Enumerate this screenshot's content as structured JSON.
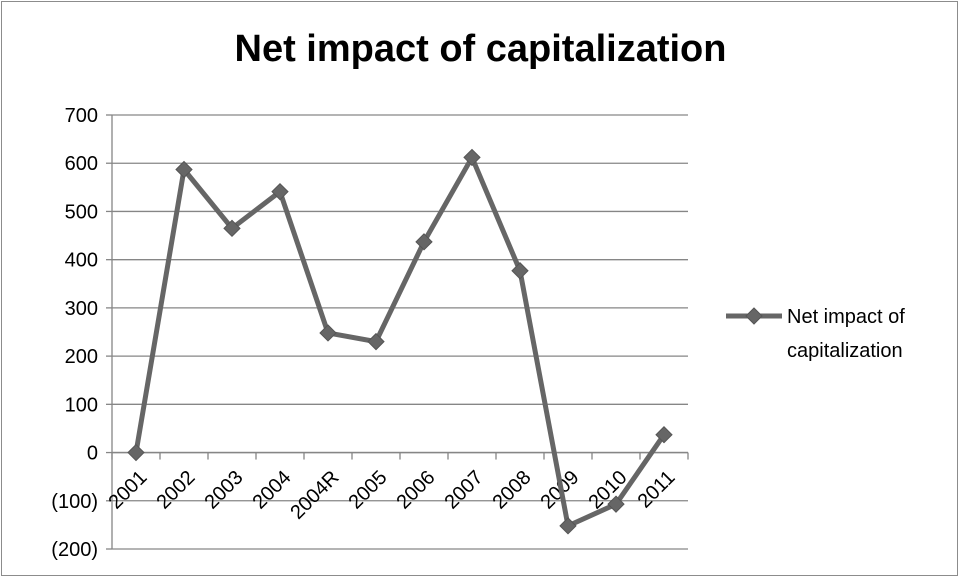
{
  "chart_data": {
    "type": "line",
    "title": "Net impact of capitalization",
    "categories": [
      "2001",
      "2002",
      "2003",
      "2004",
      "2004R",
      "2005",
      "2006",
      "2007",
      "2008",
      "2009",
      "2010",
      "2011"
    ],
    "series": [
      {
        "name": "Net impact of capitalization",
        "values": [
          0,
          587,
          465,
          541,
          248,
          230,
          437,
          612,
          377,
          -152,
          -107,
          37
        ],
        "color": "#666666",
        "marker": "diamond"
      }
    ],
    "y_tick_labels": [
      "(200)",
      "(100)",
      "0",
      "100",
      "200",
      "300",
      "400",
      "500",
      "600",
      "700"
    ],
    "ylim": [
      -200,
      700
    ],
    "y_step": 100,
    "grid": true,
    "legend": {
      "position": "right",
      "lines": [
        "Net impact of",
        "capitalization"
      ]
    }
  }
}
